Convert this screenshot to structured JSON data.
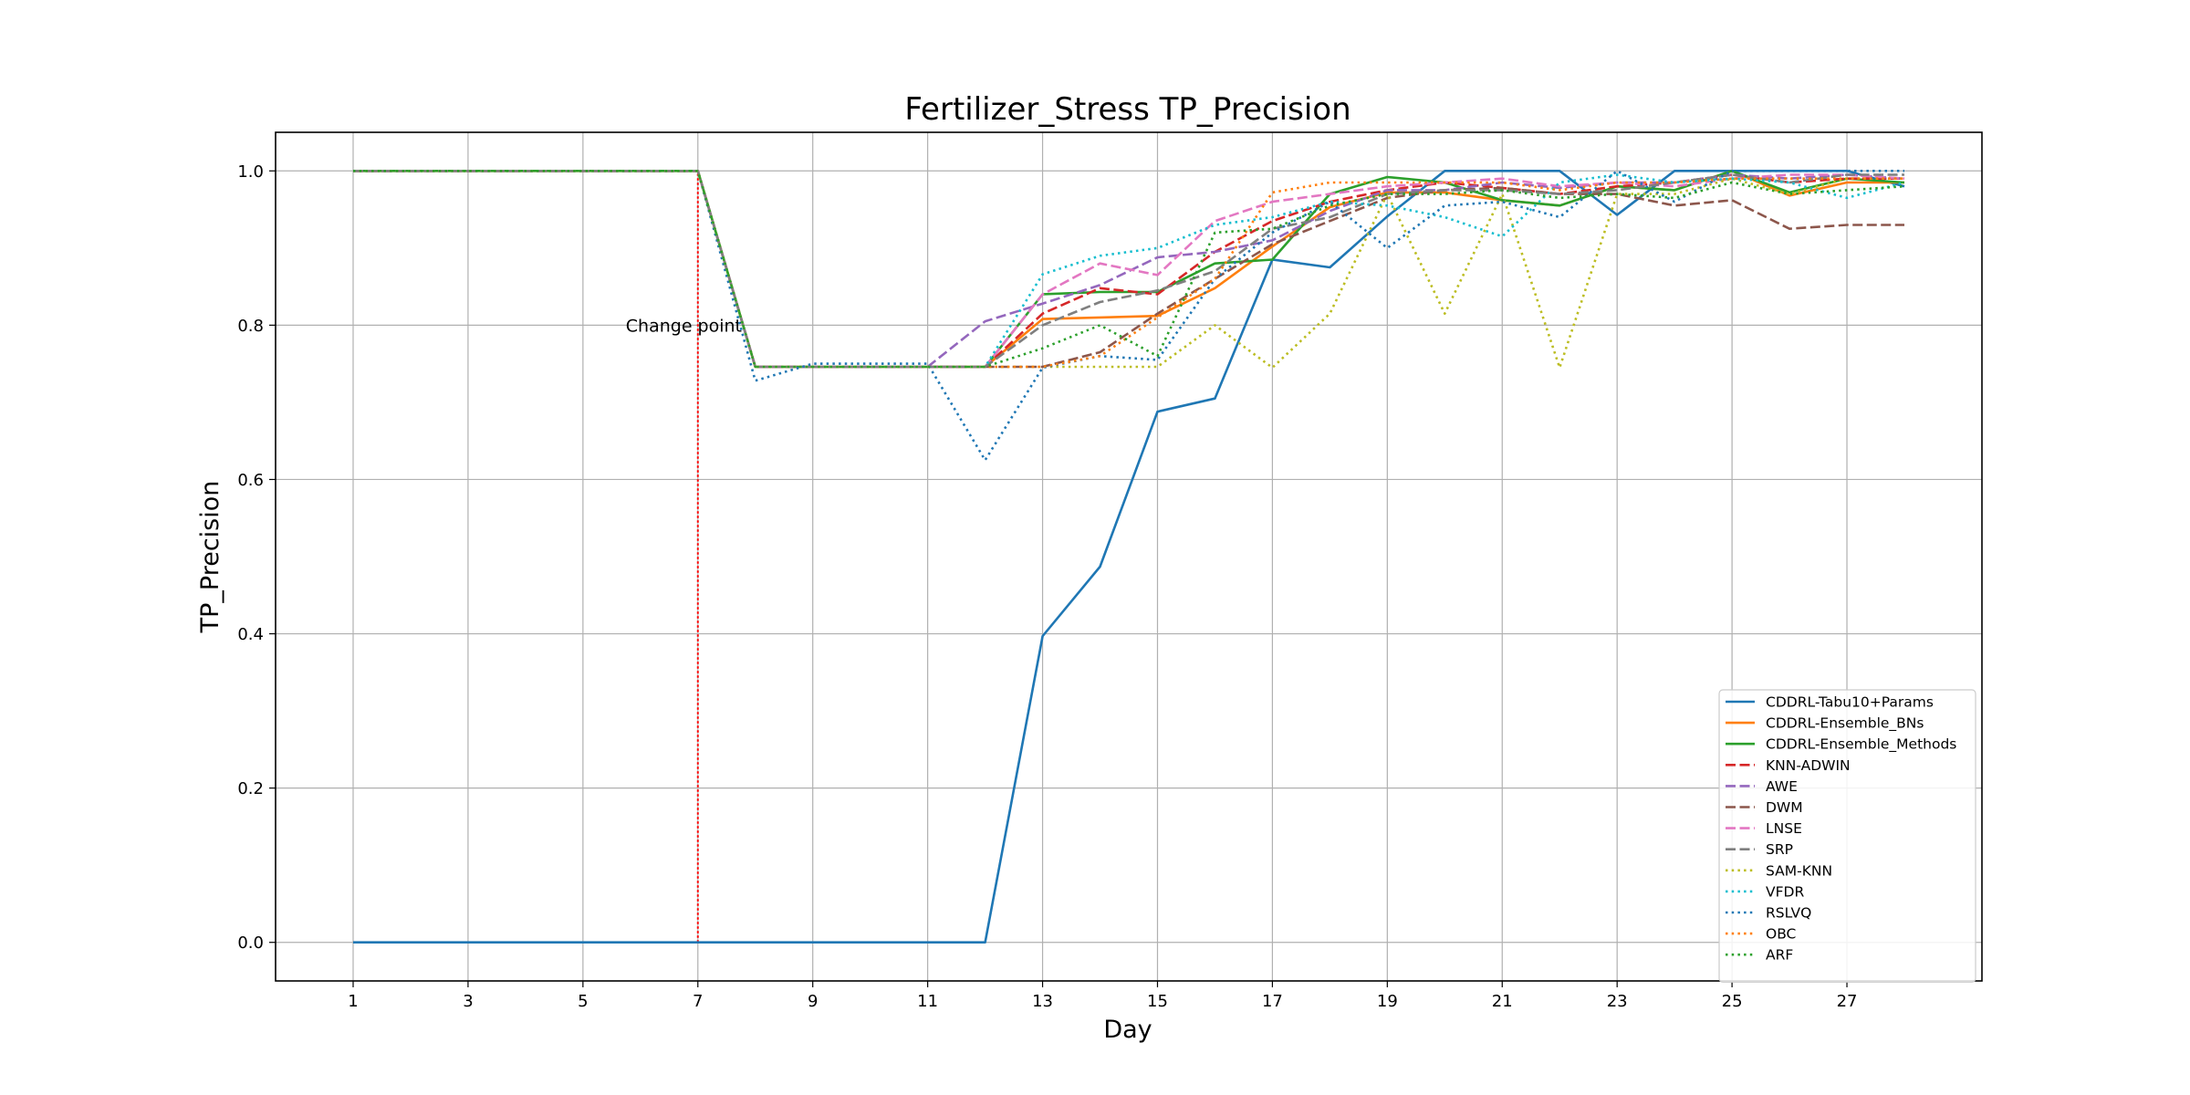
{
  "chart_data": {
    "type": "line",
    "title": "Fertilizer_Stress TP_Precision",
    "xlabel": "Day",
    "ylabel": "TP_Precision",
    "xlim": [
      -0.35,
      29.35
    ],
    "ylim": [
      -0.05,
      1.05
    ],
    "xticks": [
      1,
      3,
      5,
      7,
      9,
      11,
      13,
      15,
      17,
      19,
      21,
      23,
      25,
      27
    ],
    "yticks": [
      0.0,
      0.2,
      0.4,
      0.6,
      0.8,
      1.0
    ],
    "ytick_labels": [
      "0.0",
      "0.2",
      "0.4",
      "0.6",
      "0.8",
      "1.0"
    ],
    "grid": true,
    "legend_position": "lower-right",
    "change_point": {
      "x": 7,
      "label": "Change point",
      "label_y": 0.8,
      "color": "#ff0000"
    },
    "x": [
      1,
      2,
      3,
      4,
      5,
      6,
      7,
      8,
      9,
      10,
      11,
      12,
      13,
      14,
      15,
      16,
      17,
      18,
      19,
      20,
      21,
      22,
      23,
      24,
      25,
      26,
      27,
      28
    ],
    "series": [
      {
        "name": "CDDRL-Tabu10+Params",
        "color": "#1f77b4",
        "style": "solid",
        "values": [
          0,
          0,
          0,
          0,
          0,
          0,
          0,
          0,
          0,
          0,
          0,
          0,
          0.397,
          0.487,
          0.688,
          0.705,
          0.885,
          0.875,
          0.941,
          1.0,
          1.0,
          1.0,
          0.943,
          1.0,
          1.0,
          1.0,
          1.0,
          0.98
        ]
      },
      {
        "name": "CDDRL-Ensemble_BNs",
        "color": "#ff7f0e",
        "style": "solid",
        "values": [
          1,
          1,
          1,
          1,
          1,
          1,
          1,
          0.746,
          0.746,
          0.746,
          0.746,
          0.746,
          0.808,
          0.81,
          0.812,
          0.848,
          0.902,
          0.953,
          0.972,
          0.972,
          0.962,
          0.955,
          0.98,
          0.975,
          1.0,
          0.968,
          0.985,
          0.985
        ]
      },
      {
        "name": "CDDRL-Ensemble_Methods",
        "color": "#2ca02c",
        "style": "solid",
        "values": [
          1,
          1,
          1,
          1,
          1,
          1,
          1,
          0.746,
          0.746,
          0.746,
          0.746,
          0.746,
          0.84,
          0.843,
          0.843,
          0.88,
          0.885,
          0.97,
          0.992,
          0.985,
          0.962,
          0.955,
          0.98,
          0.975,
          1.0,
          0.972,
          0.99,
          0.985
        ]
      },
      {
        "name": "KNN-ADWIN",
        "color": "#d62728",
        "style": "dashed",
        "values": [
          1,
          1,
          1,
          1,
          1,
          1,
          1,
          0.746,
          0.746,
          0.746,
          0.746,
          0.746,
          0.815,
          0.848,
          0.84,
          0.895,
          0.935,
          0.96,
          0.975,
          0.985,
          0.978,
          0.97,
          0.98,
          0.985,
          0.995,
          0.985,
          0.99,
          0.99
        ]
      },
      {
        "name": "AWE",
        "color": "#9467bd",
        "style": "dashed",
        "values": [
          1,
          1,
          1,
          1,
          1,
          1,
          1,
          0.746,
          0.746,
          0.746,
          0.746,
          0.805,
          0.828,
          0.852,
          0.888,
          0.895,
          0.91,
          0.948,
          0.975,
          0.975,
          0.985,
          0.978,
          0.985,
          0.985,
          0.995,
          0.99,
          0.995,
          0.99
        ]
      },
      {
        "name": "DWM",
        "color": "#8c564b",
        "style": "dashed",
        "values": [
          1,
          1,
          1,
          1,
          1,
          1,
          1,
          0.746,
          0.746,
          0.746,
          0.746,
          0.746,
          0.746,
          0.765,
          0.815,
          0.86,
          0.905,
          0.935,
          0.965,
          0.975,
          0.978,
          0.97,
          0.97,
          0.955,
          0.962,
          0.925,
          0.93,
          0.93
        ]
      },
      {
        "name": "LNSE",
        "color": "#e377c2",
        "style": "dashed",
        "values": [
          1,
          1,
          1,
          1,
          1,
          1,
          1,
          0.746,
          0.746,
          0.746,
          0.746,
          0.746,
          0.84,
          0.88,
          0.865,
          0.935,
          0.96,
          0.97,
          0.98,
          0.985,
          0.99,
          0.98,
          0.985,
          0.98,
          0.99,
          0.995,
          0.995,
          0.99
        ]
      },
      {
        "name": "SRP",
        "color": "#7f7f7f",
        "style": "dashed",
        "values": [
          1,
          1,
          1,
          1,
          1,
          1,
          1,
          0.746,
          0.746,
          0.746,
          0.746,
          0.746,
          0.8,
          0.83,
          0.845,
          0.87,
          0.925,
          0.94,
          0.97,
          0.975,
          0.975,
          0.97,
          0.975,
          0.985,
          0.995,
          0.985,
          0.995,
          0.995
        ]
      },
      {
        "name": "SAM-KNN",
        "color": "#bcbd22",
        "style": "dotted",
        "values": [
          1,
          1,
          1,
          1,
          1,
          1,
          1,
          0.746,
          0.746,
          0.746,
          0.746,
          0.746,
          0.746,
          0.746,
          0.746,
          0.8,
          0.745,
          0.815,
          0.97,
          0.815,
          0.97,
          0.745,
          0.97,
          0.97,
          0.99,
          0.97,
          0.99,
          0.99
        ]
      },
      {
        "name": "VFDR",
        "color": "#17becf",
        "style": "dotted",
        "values": [
          1,
          1,
          1,
          1,
          1,
          1,
          1,
          0.746,
          0.746,
          0.746,
          0.746,
          0.746,
          0.866,
          0.89,
          0.9,
          0.93,
          0.94,
          0.96,
          0.955,
          0.94,
          0.915,
          0.985,
          0.995,
          0.985,
          0.99,
          0.985,
          0.965,
          0.985
        ]
      },
      {
        "name": "RSLVQ",
        "color": "#1f77b4",
        "style": "dotted",
        "values": [
          1,
          1,
          1,
          1,
          1,
          1,
          1,
          0.728,
          0.75,
          0.75,
          0.75,
          0.625,
          0.745,
          0.76,
          0.755,
          0.86,
          0.92,
          0.96,
          0.9,
          0.955,
          0.96,
          0.94,
          1.0,
          0.96,
          1.0,
          1.0,
          1.0,
          1.0
        ]
      },
      {
        "name": "OBC",
        "color": "#ff7f0e",
        "style": "dotted",
        "values": [
          1,
          1,
          1,
          1,
          1,
          1,
          1,
          0.746,
          0.746,
          0.746,
          0.746,
          0.746,
          0.746,
          0.76,
          0.81,
          0.86,
          0.972,
          0.985,
          0.985,
          0.985,
          0.985,
          0.975,
          0.985,
          0.985,
          0.99,
          0.99,
          0.99,
          0.99
        ]
      },
      {
        "name": "ARF",
        "color": "#2ca02c",
        "style": "dotted",
        "values": [
          1,
          1,
          1,
          1,
          1,
          1,
          1,
          0.746,
          0.746,
          0.746,
          0.746,
          0.746,
          0.77,
          0.8,
          0.76,
          0.92,
          0.925,
          0.955,
          0.97,
          0.97,
          0.975,
          0.965,
          0.97,
          0.965,
          0.985,
          0.97,
          0.975,
          0.98
        ]
      }
    ]
  }
}
